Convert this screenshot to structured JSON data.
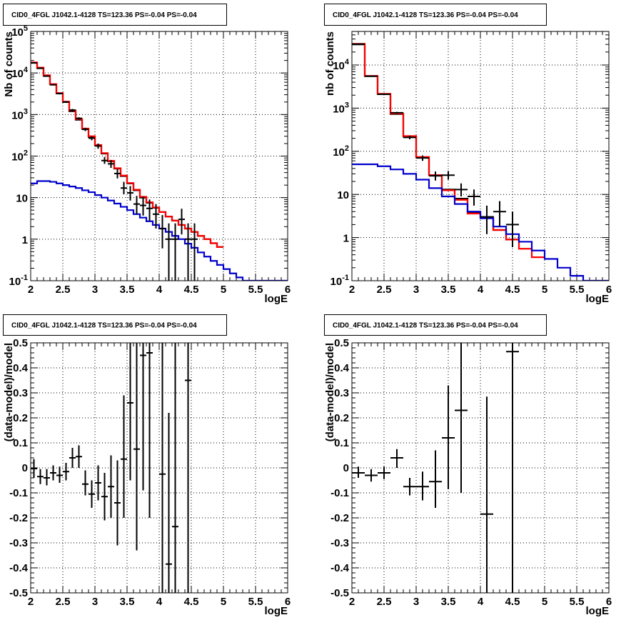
{
  "chart_data": [
    {
      "type": "line",
      "title": "CID0_4FGL J1042.1-4128 TS=123.36 PS=-0.04 PS=-0.04",
      "xlabel": "logE",
      "ylabel": "Nb of counts",
      "xlim": [
        2,
        6
      ],
      "ylim": [
        0.1,
        100000
      ],
      "yscale": "log",
      "grid": true,
      "xticks": [
        "2",
        "2.5",
        "3",
        "3.5",
        "4",
        "4.5",
        "5",
        "5.5",
        "6"
      ],
      "yticks": [
        {
          "base": "10",
          "exp": "-1"
        },
        {
          "base": "1",
          "exp": ""
        },
        {
          "base": "10",
          "exp": ""
        },
        {
          "base": "10",
          "exp": "2"
        },
        {
          "base": "10",
          "exp": "3"
        },
        {
          "base": "10",
          "exp": "4"
        },
        {
          "base": "10",
          "exp": "5"
        }
      ],
      "series": [
        {
          "kind": "step",
          "color": "#000000",
          "x_start": 2,
          "bin_width": 0.1,
          "values": [
            17500,
            13000,
            8500,
            5300,
            3200,
            2000,
            1200,
            750,
            450,
            290,
            180,
            115,
            75,
            50,
            33,
            22,
            15,
            10,
            7.5,
            5.7,
            4.5,
            3.5,
            2.8,
            2.2,
            1.8,
            1.5,
            1.2,
            1.0,
            0.8,
            0.65
          ]
        },
        {
          "kind": "step",
          "color": "#ff0000",
          "x_start": 2,
          "bin_width": 0.1,
          "values": [
            18000,
            13500,
            8800,
            5400,
            3300,
            2050,
            1250,
            780,
            460,
            300,
            185,
            118,
            77,
            51,
            34,
            22.5,
            15.5,
            10.5,
            7.7,
            5.8,
            4.5,
            3.5,
            2.8,
            2.2,
            1.8,
            1.5,
            1.2,
            1.0,
            0.8,
            0.65
          ]
        },
        {
          "kind": "step",
          "color": "#0000cc",
          "x_start": 2,
          "bin_width": 0.1,
          "values": [
            22,
            25,
            25,
            24,
            22,
            20,
            18.5,
            17,
            15,
            13.5,
            11.5,
            10,
            8.5,
            7.2,
            6,
            5,
            4,
            3.3,
            2.7,
            2.2,
            1.8,
            1.5,
            1.2,
            1.0,
            0.78,
            0.62,
            0.48,
            0.38,
            0.3,
            0.24,
            0.19,
            0.15,
            0.12,
            0.1,
            0.1,
            0.1,
            0.1,
            0.1,
            0.1,
            0.1
          ]
        },
        {
          "kind": "points",
          "color": "#000000",
          "half_width": 0.05,
          "points": [
            {
              "x": 2.05,
              "y": 17500,
              "lo": 17000,
              "hi": 18000
            },
            {
              "x": 2.15,
              "y": 13000,
              "lo": 12700,
              "hi": 13300
            },
            {
              "x": 2.25,
              "y": 8400,
              "lo": 8100,
              "hi": 8700
            },
            {
              "x": 2.35,
              "y": 5200,
              "lo": 5000,
              "hi": 5400
            },
            {
              "x": 2.45,
              "y": 3200,
              "lo": 3050,
              "hi": 3350
            },
            {
              "x": 2.55,
              "y": 2000,
              "lo": 1900,
              "hi": 2100
            },
            {
              "x": 2.65,
              "y": 1280,
              "lo": 1200,
              "hi": 1360
            },
            {
              "x": 2.75,
              "y": 810,
              "lo": 760,
              "hi": 860
            },
            {
              "x": 2.85,
              "y": 440,
              "lo": 400,
              "hi": 480
            },
            {
              "x": 2.95,
              "y": 270,
              "lo": 240,
              "hi": 300
            },
            {
              "x": 3.05,
              "y": 175,
              "lo": 150,
              "hi": 200
            },
            {
              "x": 3.15,
              "y": 78,
              "lo": 65,
              "hi": 95
            },
            {
              "x": 3.25,
              "y": 65,
              "lo": 52,
              "hi": 80
            },
            {
              "x": 3.35,
              "y": 38,
              "lo": 29,
              "hi": 48
            },
            {
              "x": 3.45,
              "y": 17,
              "lo": 12,
              "hi": 24
            },
            {
              "x": 3.55,
              "y": 13,
              "lo": 8.5,
              "hi": 19
            },
            {
              "x": 3.65,
              "y": 7,
              "lo": 4,
              "hi": 11
            },
            {
              "x": 3.75,
              "y": 6.5,
              "lo": 3.7,
              "hi": 10.5
            },
            {
              "x": 3.85,
              "y": 5.5,
              "lo": 2.8,
              "hi": 9
            },
            {
              "x": 3.95,
              "y": 4,
              "lo": 1.8,
              "hi": 7
            },
            {
              "x": 4.05,
              "y": 1.8,
              "lo": 0.6,
              "hi": 3.8
            },
            {
              "x": 4.15,
              "y": 1,
              "lo": 0.1,
              "hi": 2.4
            },
            {
              "x": 4.25,
              "y": 1,
              "lo": 0.1,
              "hi": 2.4
            },
            {
              "x": 4.35,
              "y": 3,
              "lo": 1.3,
              "hi": 5.4
            },
            {
              "x": 4.45,
              "y": 1,
              "lo": 0.1,
              "hi": 2.4
            },
            {
              "x": 4.55,
              "y": 1,
              "lo": 0.1,
              "hi": 2.4
            }
          ]
        }
      ]
    },
    {
      "type": "line",
      "title": "CID0_4FGL J1042.1-4128 TS=123.36 PS=-0.04 PS=-0.04",
      "xlabel": "logE",
      "ylabel": "nb of counts",
      "xlim": [
        2,
        6
      ],
      "ylim": [
        0.1,
        60000
      ],
      "yscale": "log",
      "grid": true,
      "xticks": [
        "2",
        "2.5",
        "3",
        "3.5",
        "4",
        "4.5",
        "5",
        "5.5",
        "6"
      ],
      "yticks": [
        {
          "base": "10",
          "exp": "-1"
        },
        {
          "base": "1",
          "exp": ""
        },
        {
          "base": "10",
          "exp": ""
        },
        {
          "base": "10",
          "exp": "2"
        },
        {
          "base": "10",
          "exp": "3"
        },
        {
          "base": "10",
          "exp": "4"
        }
      ],
      "series": [
        {
          "kind": "step",
          "color": "#000000",
          "x_start": 2,
          "bin_width": 0.2,
          "values": [
            30000,
            5500,
            2100,
            730,
            220,
            72,
            28,
            13,
            8,
            3.8,
            3,
            1.5,
            0.9
          ]
        },
        {
          "kind": "step",
          "color": "#ff0000",
          "x_start": 2,
          "bin_width": 0.2,
          "values": [
            31000,
            5600,
            2150,
            750,
            225,
            74,
            28,
            12.5,
            7.5,
            3.6,
            2.9,
            1.5,
            0.9,
            0.55,
            0.35
          ]
        },
        {
          "kind": "step",
          "color": "#0000cc",
          "x_start": 2,
          "bin_width": 0.2,
          "values": [
            50,
            50,
            45,
            38,
            30,
            22,
            14,
            9,
            6,
            4,
            2.8,
            1.8,
            1.2,
            0.8,
            0.5,
            0.32,
            0.2,
            0.13,
            0.1,
            0.1
          ]
        },
        {
          "kind": "points",
          "color": "#000000",
          "half_width": 0.1,
          "points": [
            {
              "x": 2.1,
              "y": 30500,
              "lo": 30000,
              "hi": 31000
            },
            {
              "x": 2.3,
              "y": 5500,
              "lo": 5350,
              "hi": 5650
            },
            {
              "x": 2.5,
              "y": 2100,
              "lo": 2000,
              "hi": 2200
            },
            {
              "x": 2.7,
              "y": 780,
              "lo": 740,
              "hi": 820
            },
            {
              "x": 2.9,
              "y": 210,
              "lo": 190,
              "hi": 230
            },
            {
              "x": 3.1,
              "y": 70,
              "lo": 60,
              "hi": 80
            },
            {
              "x": 3.3,
              "y": 27,
              "lo": 21,
              "hi": 34
            },
            {
              "x": 3.5,
              "y": 28,
              "lo": 22,
              "hi": 35
            },
            {
              "x": 3.7,
              "y": 13,
              "lo": 9,
              "hi": 18
            },
            {
              "x": 3.9,
              "y": 9,
              "lo": 5.5,
              "hi": 13
            },
            {
              "x": 4.1,
              "y": 3,
              "lo": 1.2,
              "hi": 5.5
            },
            {
              "x": 4.3,
              "y": 4,
              "lo": 1.8,
              "hi": 7
            },
            {
              "x": 4.5,
              "y": 2,
              "lo": 0.6,
              "hi": 4
            }
          ]
        }
      ]
    },
    {
      "type": "scatter",
      "title": "CID0_4FGL J1042.1-4128 TS=123.36 PS=-0.04 PS=-0.04",
      "xlabel": "logE",
      "ylabel": "(data-model)/model",
      "xlim": [
        2,
        6
      ],
      "ylim": [
        -0.5,
        0.5
      ],
      "grid": true,
      "xticks": [
        "2",
        "2.5",
        "3",
        "3.5",
        "4",
        "4.5",
        "5",
        "5.5",
        "6"
      ],
      "yticks": [
        "-0.5",
        "-0.4",
        "-0.3",
        "-0.2",
        "-0.1",
        "0",
        "0.1",
        "0.2",
        "0.3",
        "0.4",
        "0.5"
      ],
      "series": [
        {
          "kind": "points",
          "color": "#000000",
          "half_width": 0.05,
          "points": [
            {
              "x": 2.05,
              "y": -0.003,
              "lo": -0.04,
              "hi": 0.035
            },
            {
              "x": 2.15,
              "y": -0.035,
              "lo": -0.065,
              "hi": -0.005
            },
            {
              "x": 2.25,
              "y": -0.04,
              "lo": -0.07,
              "hi": -0.005
            },
            {
              "x": 2.35,
              "y": -0.02,
              "lo": -0.05,
              "hi": 0.01
            },
            {
              "x": 2.45,
              "y": -0.03,
              "lo": -0.06,
              "hi": 0.005
            },
            {
              "x": 2.55,
              "y": -0.015,
              "lo": -0.05,
              "hi": 0.02
            },
            {
              "x": 2.65,
              "y": 0.04,
              "lo": 0.0,
              "hi": 0.08
            },
            {
              "x": 2.75,
              "y": 0.045,
              "lo": 0.0,
              "hi": 0.09
            },
            {
              "x": 2.85,
              "y": -0.065,
              "lo": -0.11,
              "hi": -0.01
            },
            {
              "x": 2.95,
              "y": -0.105,
              "lo": -0.16,
              "hi": -0.05
            },
            {
              "x": 3.05,
              "y": -0.06,
              "lo": -0.13,
              "hi": 0.01
            },
            {
              "x": 3.15,
              "y": -0.115,
              "lo": -0.21,
              "hi": -0.02
            },
            {
              "x": 3.25,
              "y": -0.075,
              "lo": -0.2,
              "hi": 0.05
            },
            {
              "x": 3.35,
              "y": -0.14,
              "lo": -0.31,
              "hi": 0.03
            },
            {
              "x": 3.45,
              "y": 0.035,
              "lo": -0.2,
              "hi": 0.29
            },
            {
              "x": 3.55,
              "y": 0.26,
              "lo": -0.05,
              "hi": 0.5
            },
            {
              "x": 3.65,
              "y": 0.075,
              "lo": -0.33,
              "hi": 0.5
            },
            {
              "x": 3.75,
              "y": 0.45,
              "lo": -0.09,
              "hi": 0.5
            },
            {
              "x": 3.85,
              "y": 0.46,
              "lo": -0.2,
              "hi": 0.5
            },
            {
              "x": 4.05,
              "y": -0.025,
              "lo": -0.5,
              "hi": 0.5
            },
            {
              "x": 4.15,
              "y": -0.385,
              "lo": -0.5,
              "hi": 0.22
            },
            {
              "x": 4.25,
              "y": -0.235,
              "lo": -0.5,
              "hi": 0.5
            },
            {
              "x": 4.45,
              "y": 0.35,
              "lo": -0.5,
              "hi": 0.5
            }
          ]
        }
      ]
    },
    {
      "type": "scatter",
      "title": "CID0_4FGL J1042.1-4128 TS=123.36 PS=-0.04 PS=-0.04",
      "xlabel": "logE",
      "ylabel": "(data-model)/model",
      "xlim": [
        2,
        6
      ],
      "ylim": [
        -0.5,
        0.5
      ],
      "grid": true,
      "xticks": [
        "2",
        "2.5",
        "3",
        "3.5",
        "4",
        "4.5",
        "5",
        "5.5",
        "6"
      ],
      "yticks": [
        "-0.5",
        "-0.4",
        "-0.3",
        "-0.2",
        "-0.1",
        "0",
        "0.1",
        "0.2",
        "0.3",
        "0.4",
        "0.5"
      ],
      "series": [
        {
          "kind": "points",
          "color": "#000000",
          "half_width": 0.1,
          "points": [
            {
              "x": 2.1,
              "y": -0.02,
              "lo": -0.04,
              "hi": 0.005
            },
            {
              "x": 2.3,
              "y": -0.03,
              "lo": -0.055,
              "hi": -0.005
            },
            {
              "x": 2.5,
              "y": -0.02,
              "lo": -0.045,
              "hi": 0.005
            },
            {
              "x": 2.7,
              "y": 0.04,
              "lo": 0.0,
              "hi": 0.075
            },
            {
              "x": 2.9,
              "y": -0.075,
              "lo": -0.11,
              "hi": -0.04
            },
            {
              "x": 3.1,
              "y": -0.075,
              "lo": -0.13,
              "hi": -0.015
            },
            {
              "x": 3.3,
              "y": -0.055,
              "lo": -0.16,
              "hi": 0.07
            },
            {
              "x": 3.5,
              "y": 0.12,
              "lo": -0.085,
              "hi": 0.33
            },
            {
              "x": 3.7,
              "y": 0.23,
              "lo": -0.1,
              "hi": 0.5
            },
            {
              "x": 4.1,
              "y": -0.185,
              "lo": -0.5,
              "hi": 0.285
            },
            {
              "x": 4.5,
              "y": 0.465,
              "lo": -0.5,
              "hi": 0.5
            }
          ]
        }
      ]
    }
  ]
}
